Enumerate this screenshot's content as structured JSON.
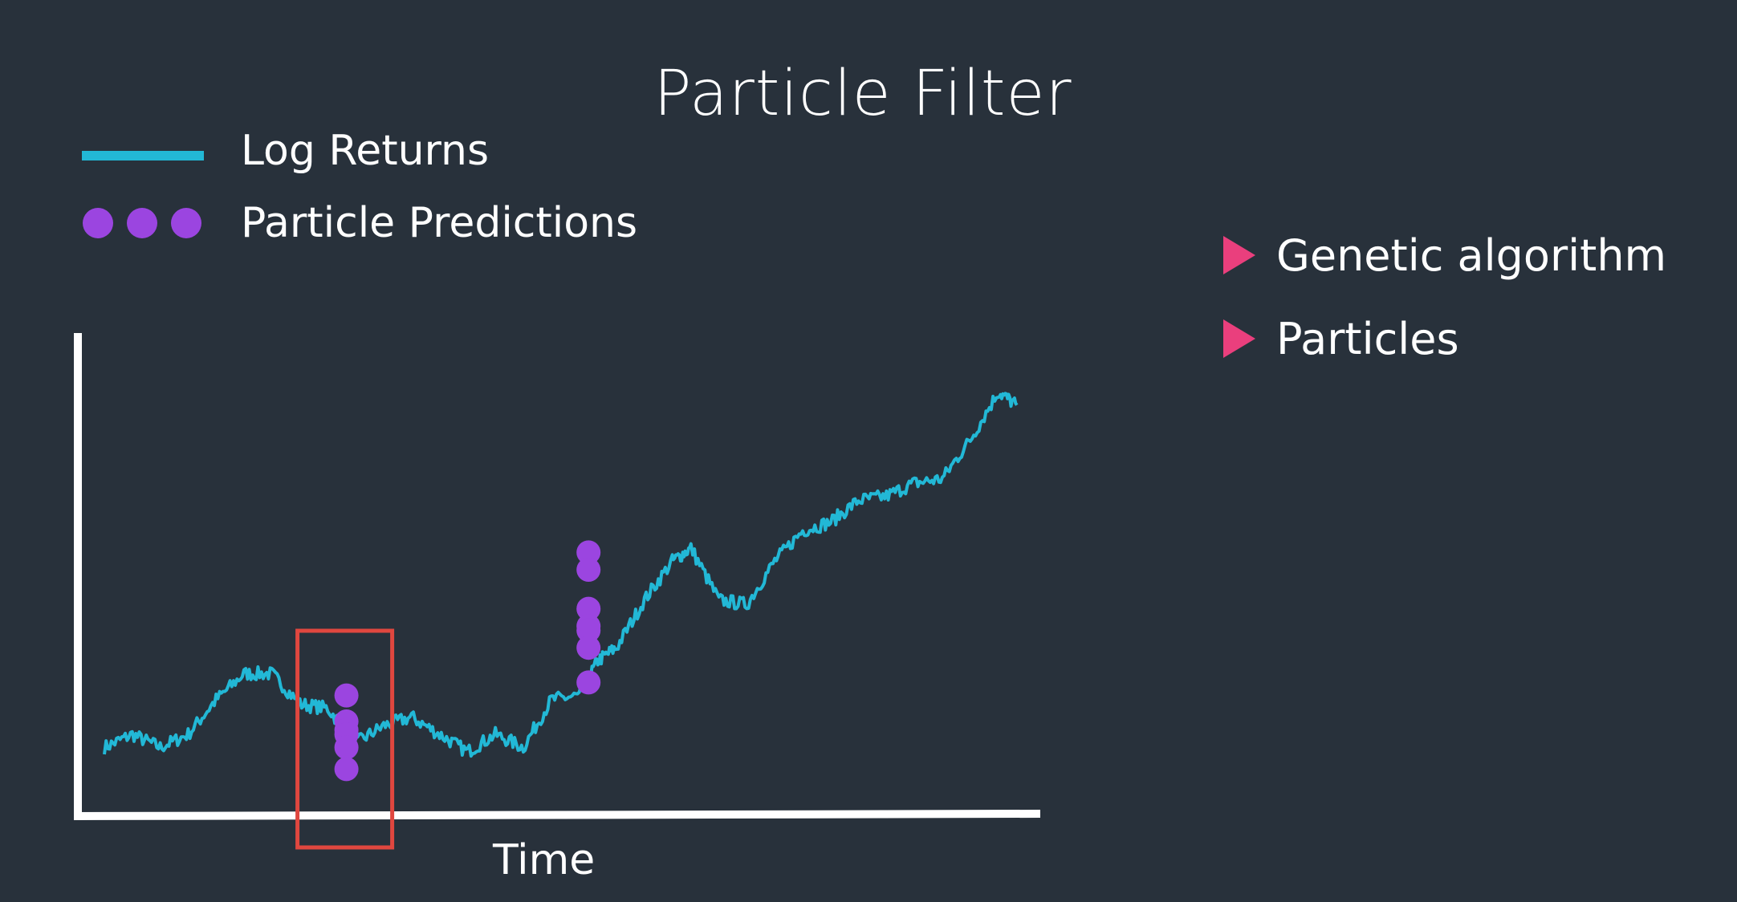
{
  "title": "Particle Filter",
  "legend": {
    "line_label": "Log Returns",
    "dots_label": "Particle Predictions"
  },
  "bullets": [
    {
      "text": "Genetic algorithm"
    },
    {
      "text": "Particles"
    }
  ],
  "xlabel": "Time",
  "colors": {
    "background": "#28313b",
    "log_returns": "#22b8d6",
    "particles": "#9b45e0",
    "highlight_box": "#e0473f",
    "bullet": "#ea3f7d",
    "axes": "#ffffff"
  },
  "icons": {
    "bullet": "triangle-right-icon"
  },
  "chart_data": {
    "type": "line",
    "xlabel": "Time",
    "ylabel": "",
    "x_range": [
      0,
      100
    ],
    "y_range": [
      0,
      100
    ],
    "grid": false,
    "legend_placement": "top-left",
    "series": [
      {
        "name": "Log Returns",
        "x": [
          0,
          3,
          6,
          9,
          12,
          15,
          18,
          21,
          24,
          27,
          30,
          33,
          36,
          39,
          42,
          45,
          48,
          51,
          53,
          55,
          58,
          61,
          63,
          66,
          69,
          72,
          75,
          78,
          81,
          84,
          87,
          90,
          93,
          96,
          98
        ],
        "y": [
          9,
          12,
          9,
          12,
          20,
          26,
          26,
          19,
          18,
          10,
          14,
          16,
          12,
          8,
          12,
          9,
          20,
          21,
          29,
          32,
          43,
          52,
          55,
          43,
          42,
          52,
          59,
          61,
          66,
          67,
          70,
          71,
          80,
          91,
          88
        ]
      }
    ],
    "particles": [
      {
        "x": 26,
        "y": [
          21,
          15,
          13,
          12,
          9,
          4
        ]
      },
      {
        "x": 52,
        "y": [
          54,
          50,
          41,
          37,
          36,
          32,
          24
        ]
      }
    ],
    "highlight_x": 26
  }
}
